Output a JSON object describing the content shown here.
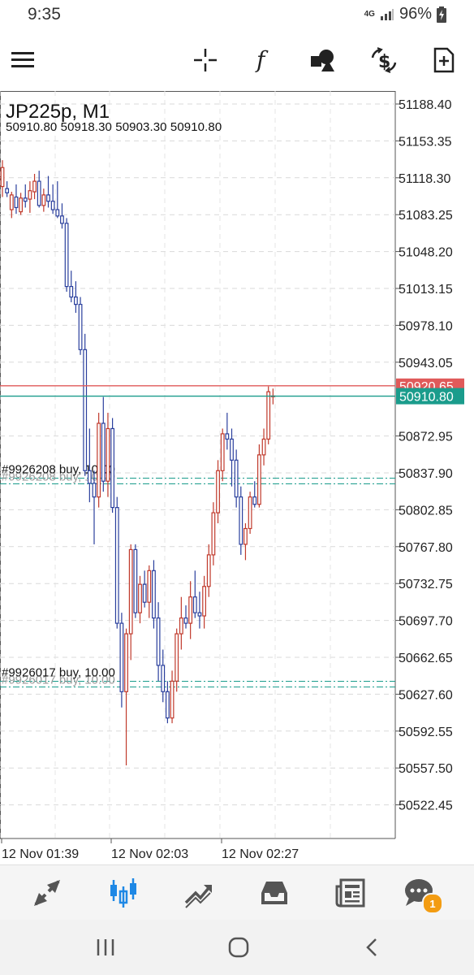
{
  "status_bar": {
    "time": "9:35",
    "network": "4G",
    "battery": "96%"
  },
  "toolbar": {
    "menu_icon": "hamburger-icon",
    "tools": [
      "crosshair-icon",
      "indicator-function-icon",
      "objects-shapes-icon",
      "currency-swap-icon",
      "new-order-icon"
    ]
  },
  "chart": {
    "symbol": "JP225p, M1",
    "ohlc": "50910.80 50918.30 50903.30 50910.80",
    "colors": {
      "bull": "#c0392b",
      "bear": "#2a3f9d",
      "bid_line": "#1a9c8c",
      "ask_line": "#e05a5a",
      "trade_line": "#1a9c8c"
    },
    "price_scale": [
      "51188.40",
      "51153.35",
      "51118.30",
      "51083.25",
      "51048.20",
      "51013.15",
      "50978.10",
      "50943.05",
      "50872.95",
      "50837.90",
      "50802.85",
      "50767.80",
      "50732.75",
      "50697.70",
      "50662.65",
      "50627.60",
      "50592.55",
      "50557.50",
      "50522.45"
    ],
    "ask_label": "50920.65",
    "bid_label": "50910.80",
    "ask_price": 50920.65,
    "bid_price": 50910.8,
    "trades": [
      {
        "label": "#9926208 buy, 10.00",
        "price": 50829
      },
      {
        "label": "#9926017 buy, 10.00",
        "price": 50636
      }
    ],
    "time_labels": [
      "12 Nov 01:39",
      "12 Nov 02:03",
      "12 Nov 02:27"
    ]
  },
  "chart_data": {
    "type": "candlestick",
    "title": "JP225p, M1",
    "ylim": [
      50490,
      51200
    ],
    "candles": [
      {
        "o": 51110,
        "h": 51135,
        "l": 51100,
        "c": 51128
      },
      {
        "o": 51108,
        "h": 51115,
        "l": 51100,
        "c": 51104
      },
      {
        "o": 51088,
        "h": 51105,
        "l": 51080,
        "c": 51102
      },
      {
        "o": 51100,
        "h": 51112,
        "l": 51084,
        "c": 51090
      },
      {
        "o": 51086,
        "h": 51104,
        "l": 51083,
        "c": 51099
      },
      {
        "o": 51099,
        "h": 51112,
        "l": 51090,
        "c": 51096
      },
      {
        "o": 51098,
        "h": 51115,
        "l": 51085,
        "c": 51106
      },
      {
        "o": 51105,
        "h": 51122,
        "l": 51098,
        "c": 51115
      },
      {
        "o": 51115,
        "h": 51125,
        "l": 51090,
        "c": 51092
      },
      {
        "o": 51092,
        "h": 51108,
        "l": 51086,
        "c": 51102
      },
      {
        "o": 51102,
        "h": 51120,
        "l": 51090,
        "c": 51096
      },
      {
        "o": 51096,
        "h": 51112,
        "l": 51084,
        "c": 51088
      },
      {
        "o": 51088,
        "h": 51115,
        "l": 51080,
        "c": 51082
      },
      {
        "o": 51082,
        "h": 51094,
        "l": 51070,
        "c": 51075
      },
      {
        "o": 51075,
        "h": 51080,
        "l": 51010,
        "c": 51015
      },
      {
        "o": 51015,
        "h": 51030,
        "l": 51000,
        "c": 51005
      },
      {
        "o": 51005,
        "h": 51020,
        "l": 50990,
        "c": 50998
      },
      {
        "o": 50998,
        "h": 51005,
        "l": 50950,
        "c": 50955
      },
      {
        "o": 50955,
        "h": 50970,
        "l": 50835,
        "c": 50840
      },
      {
        "o": 50840,
        "h": 50880,
        "l": 50810,
        "c": 50828
      },
      {
        "o": 50828,
        "h": 50840,
        "l": 50770,
        "c": 50815
      },
      {
        "o": 50815,
        "h": 50895,
        "l": 50805,
        "c": 50885
      },
      {
        "o": 50885,
        "h": 50910,
        "l": 50820,
        "c": 50830
      },
      {
        "o": 50830,
        "h": 50895,
        "l": 50815,
        "c": 50880
      },
      {
        "o": 50880,
        "h": 50890,
        "l": 50800,
        "c": 50805
      },
      {
        "o": 50805,
        "h": 50815,
        "l": 50690,
        "c": 50695
      },
      {
        "o": 50695,
        "h": 50705,
        "l": 50615,
        "c": 50630
      },
      {
        "o": 50630,
        "h": 50690,
        "l": 50560,
        "c": 50685
      },
      {
        "o": 50685,
        "h": 50770,
        "l": 50660,
        "c": 50765
      },
      {
        "o": 50765,
        "h": 50770,
        "l": 50700,
        "c": 50705
      },
      {
        "o": 50705,
        "h": 50740,
        "l": 50695,
        "c": 50732
      },
      {
        "o": 50732,
        "h": 50745,
        "l": 50710,
        "c": 50715
      },
      {
        "o": 50715,
        "h": 50750,
        "l": 50700,
        "c": 50745
      },
      {
        "o": 50745,
        "h": 50755,
        "l": 50690,
        "c": 50700
      },
      {
        "o": 50700,
        "h": 50715,
        "l": 50640,
        "c": 50655
      },
      {
        "o": 50655,
        "h": 50670,
        "l": 50620,
        "c": 50630
      },
      {
        "o": 50630,
        "h": 50640,
        "l": 50600,
        "c": 50605
      },
      {
        "o": 50605,
        "h": 50650,
        "l": 50600,
        "c": 50640
      },
      {
        "o": 50640,
        "h": 50690,
        "l": 50630,
        "c": 50685
      },
      {
        "o": 50685,
        "h": 50720,
        "l": 50670,
        "c": 50700
      },
      {
        "o": 50700,
        "h": 50712,
        "l": 50690,
        "c": 50695
      },
      {
        "o": 50695,
        "h": 50735,
        "l": 50680,
        "c": 50720
      },
      {
        "o": 50720,
        "h": 50745,
        "l": 50700,
        "c": 50705
      },
      {
        "o": 50705,
        "h": 50725,
        "l": 50690,
        "c": 50702
      },
      {
        "o": 50702,
        "h": 50740,
        "l": 50690,
        "c": 50730
      },
      {
        "o": 50730,
        "h": 50770,
        "l": 50720,
        "c": 50760
      },
      {
        "o": 50760,
        "h": 50810,
        "l": 50750,
        "c": 50800
      },
      {
        "o": 50800,
        "h": 50850,
        "l": 50790,
        "c": 50840
      },
      {
        "o": 50840,
        "h": 50880,
        "l": 50830,
        "c": 50875
      },
      {
        "o": 50875,
        "h": 50895,
        "l": 50860,
        "c": 50870
      },
      {
        "o": 50870,
        "h": 50880,
        "l": 50825,
        "c": 50850
      },
      {
        "o": 50850,
        "h": 50860,
        "l": 50805,
        "c": 50815
      },
      {
        "o": 50815,
        "h": 50825,
        "l": 50760,
        "c": 50770
      },
      {
        "o": 50770,
        "h": 50790,
        "l": 50755,
        "c": 50785
      },
      {
        "o": 50785,
        "h": 50820,
        "l": 50780,
        "c": 50815
      },
      {
        "o": 50815,
        "h": 50830,
        "l": 50805,
        "c": 50808
      },
      {
        "o": 50808,
        "h": 50865,
        "l": 50805,
        "c": 50855
      },
      {
        "o": 50855,
        "h": 50880,
        "l": 50845,
        "c": 50870
      },
      {
        "o": 50870,
        "h": 50920,
        "l": 50865,
        "c": 50915
      },
      {
        "o": 50911,
        "h": 50918,
        "l": 50903,
        "c": 50911
      }
    ]
  },
  "bottom_nav": {
    "items": [
      "quotes-icon",
      "chart-icon",
      "trade-icon",
      "history-icon",
      "news-icon",
      "messages-icon"
    ],
    "active": "chart-icon",
    "messages_badge": "1",
    "active_color": "#1e88e5",
    "inactive_color": "#555555"
  },
  "system_nav": [
    "recents-icon",
    "home-icon",
    "back-icon"
  ]
}
